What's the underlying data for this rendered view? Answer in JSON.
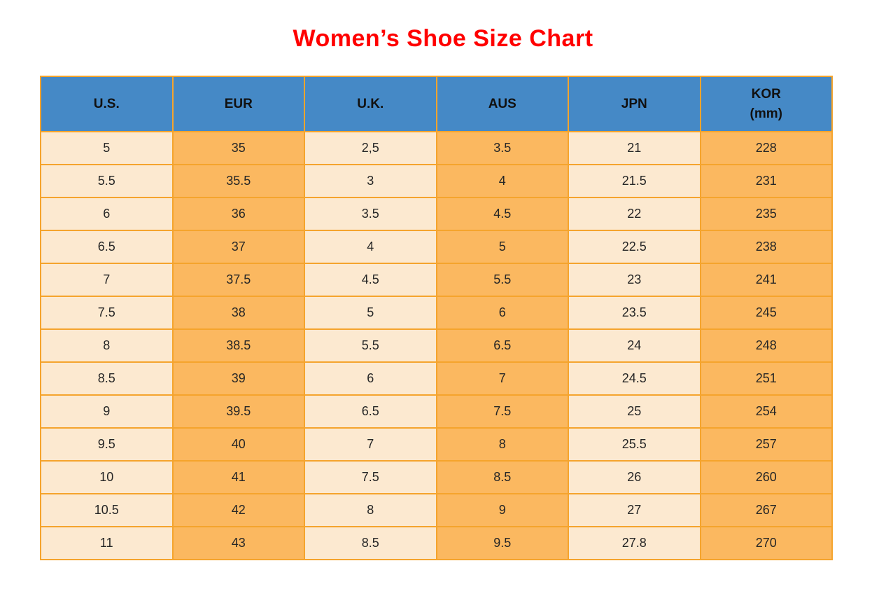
{
  "chart_data": {
    "type": "table",
    "title": "Women’s Shoe Size Chart",
    "columns": [
      "U.S.",
      "EUR",
      "U.K.",
      "AUS",
      "JPN",
      "KOR (mm)"
    ],
    "header_lines": [
      [
        "U.S."
      ],
      [
        "EUR"
      ],
      [
        "U.K."
      ],
      [
        "AUS"
      ],
      [
        "JPN"
      ],
      [
        "KOR",
        "(mm)"
      ]
    ],
    "rows": [
      [
        "5",
        "35",
        "2,5",
        "3.5",
        "21",
        "228"
      ],
      [
        "5.5",
        "35.5",
        "3",
        "4",
        "21.5",
        "231"
      ],
      [
        "6",
        "36",
        "3.5",
        "4.5",
        "22",
        "235"
      ],
      [
        "6.5",
        "37",
        "4",
        "5",
        "22.5",
        "238"
      ],
      [
        "7",
        "37.5",
        "4.5",
        "5.5",
        "23",
        "241"
      ],
      [
        "7.5",
        "38",
        "5",
        "6",
        "23.5",
        "245"
      ],
      [
        "8",
        "38.5",
        "5.5",
        "6.5",
        "24",
        "248"
      ],
      [
        "8.5",
        "39",
        "6",
        "7",
        "24.5",
        "251"
      ],
      [
        "9",
        "39.5",
        "6.5",
        "7.5",
        "25",
        "254"
      ],
      [
        "9.5",
        "40",
        "7",
        "8",
        "25.5",
        "257"
      ],
      [
        "10",
        "41",
        "7.5",
        "8.5",
        "26",
        "260"
      ],
      [
        "10.5",
        "42",
        "8",
        "9",
        "27",
        "267"
      ],
      [
        "11",
        "43",
        "8.5",
        "9.5",
        "27.8",
        "270"
      ]
    ]
  },
  "colors": {
    "title": "#FF0000",
    "header_bg": "#4589C6",
    "header_text": "#111111",
    "cell_text": "#262626",
    "col_light": "#FCE9D0",
    "col_dark": "#FBB860",
    "border": "#F5A42D"
  }
}
